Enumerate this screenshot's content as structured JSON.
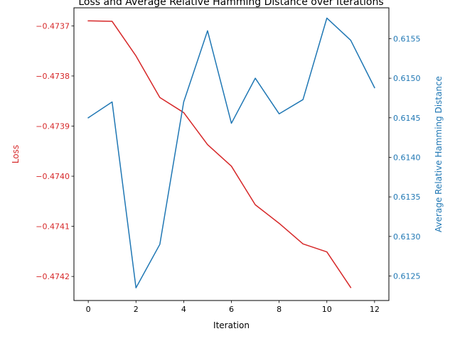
{
  "chart_data": {
    "type": "line",
    "title": "Loss and Average Relative Hamming Distance over Iterations",
    "xlabel": "Iteration",
    "xlim": [
      -0.6,
      12.6
    ],
    "xticks": [
      0,
      2,
      4,
      6,
      8,
      10,
      12
    ],
    "legend": "none",
    "grid": false,
    "series": [
      {
        "name": "Loss",
        "axis": "left",
        "color": "#d62728",
        "x": [
          0,
          1,
          2,
          3,
          4,
          5,
          6,
          7,
          8,
          9,
          10,
          11
        ],
        "values": [
          -0.47369,
          -0.473691,
          -0.47376,
          -0.473843,
          -0.473873,
          -0.473937,
          -0.47398,
          -0.474057,
          -0.474094,
          -0.474135,
          -0.474151,
          -0.474222
        ]
      },
      {
        "name": "Average Relative Hamming Distance",
        "axis": "right",
        "color": "#1f77b4",
        "x": [
          0,
          1,
          2,
          3,
          4,
          5,
          6,
          7,
          8,
          9,
          10,
          11,
          12
        ],
        "values": [
          0.6145,
          0.6147,
          0.61235,
          0.6129,
          0.6147,
          0.6156,
          0.61443,
          0.615,
          0.61455,
          0.61473,
          0.61576,
          0.61548,
          0.61488
        ]
      }
    ],
    "y_left": {
      "label": "Loss",
      "color": "#d62728",
      "ylim": [
        -0.474248,
        -0.473664
      ],
      "ticks": [
        -0.4737,
        -0.4738,
        -0.4739,
        -0.474,
        -0.4741,
        -0.4742
      ],
      "tick_labels": [
        "−0.4737",
        "−0.4738",
        "−0.4739",
        "−0.4740",
        "−0.4741",
        "−0.4742"
      ]
    },
    "y_right": {
      "label": "Average Relative Hamming Distance",
      "color": "#1f77b4",
      "ylim": [
        0.61219,
        0.61589
      ],
      "ticks": [
        0.6125,
        0.613,
        0.6135,
        0.614,
        0.6145,
        0.615,
        0.6155
      ],
      "tick_labels": [
        "0.6125",
        "0.6130",
        "0.6135",
        "0.6140",
        "0.6145",
        "0.6150",
        "0.6155"
      ]
    }
  }
}
